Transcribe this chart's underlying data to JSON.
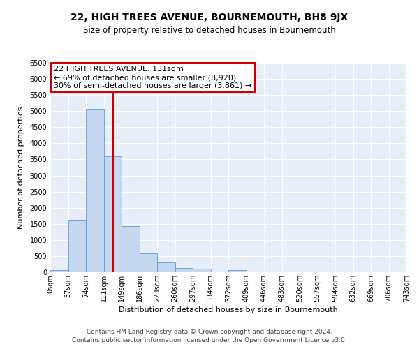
{
  "title": "22, HIGH TREES AVENUE, BOURNEMOUTH, BH8 9JX",
  "subtitle": "Size of property relative to detached houses in Bournemouth",
  "xlabel": "Distribution of detached houses by size in Bournemouth",
  "ylabel": "Number of detached properties",
  "bar_color": "#c5d8ef",
  "bar_edge_color": "#5b9bd5",
  "background_color": "#e8eef7",
  "grid_color": "#ffffff",
  "vline_x": 131,
  "vline_color": "#cc0000",
  "bin_edges": [
    0,
    37,
    74,
    111,
    148,
    185,
    222,
    259,
    296,
    333,
    370,
    407,
    444,
    481,
    518,
    555,
    592,
    629,
    666,
    703,
    740
  ],
  "bin_labels": [
    "0sqm",
    "37sqm",
    "74sqm",
    "111sqm",
    "149sqm",
    "186sqm",
    "223sqm",
    "260sqm",
    "297sqm",
    "334sqm",
    "372sqm",
    "409sqm",
    "446sqm",
    "483sqm",
    "520sqm",
    "557sqm",
    "594sqm",
    "632sqm",
    "669sqm",
    "706sqm",
    "743sqm"
  ],
  "counts": [
    60,
    1630,
    5080,
    3600,
    1420,
    580,
    300,
    140,
    100,
    0,
    60,
    0,
    0,
    0,
    0,
    0,
    0,
    0,
    0,
    0
  ],
  "ylim": [
    0,
    6500
  ],
  "xlim": [
    0,
    740
  ],
  "annotation_title": "22 HIGH TREES AVENUE: 131sqm",
  "annotation_line1": "← 69% of detached houses are smaller (8,920)",
  "annotation_line2": "30% of semi-detached houses are larger (3,861) →",
  "annotation_box_facecolor": "#ffffff",
  "annotation_box_edgecolor": "#cc0000",
  "footer1": "Contains HM Land Registry data © Crown copyright and database right 2024.",
  "footer2": "Contains public sector information licensed under the Open Government Licence v3.0.",
  "fig_facecolor": "#ffffff",
  "title_fontsize": 10,
  "subtitle_fontsize": 8.5,
  "axis_label_fontsize": 8,
  "tick_fontsize": 7,
  "footer_fontsize": 6.5,
  "annotation_fontsize": 8
}
